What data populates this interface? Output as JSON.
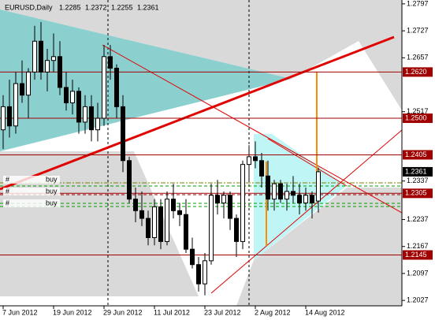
{
  "chart_data": {
    "type": "candlestick",
    "symbol": "EURUSD,Daily",
    "categories": [
      "7 Jun 2012",
      null,
      null,
      null,
      null,
      null,
      null,
      null,
      "19 Jun 2012",
      null,
      null,
      null,
      null,
      null,
      null,
      null,
      "29 Jun 2012",
      null,
      null,
      null,
      null,
      null,
      null,
      null,
      "11 Jul 2012",
      null,
      null,
      null,
      null,
      null,
      null,
      null,
      "23 Jul 2012",
      null,
      null,
      null,
      null,
      null,
      null,
      null,
      "2 Aug 2012",
      null,
      null,
      null,
      null,
      null,
      null,
      null,
      "14 Aug 2012",
      null,
      null
    ],
    "ohlc": {
      "open": [
        1.247,
        1.253,
        1.248,
        1.259,
        1.256,
        1.262,
        1.27,
        1.262,
        1.265,
        1.266,
        1.258,
        1.254,
        1.257,
        1.249,
        1.253,
        1.247,
        1.25,
        1.266,
        1.263,
        1.253,
        1.239,
        1.229,
        1.226,
        1.224,
        1.219,
        1.227,
        1.218,
        1.229,
        1.226,
        1.225,
        1.216,
        1.212,
        1.207,
        1.213,
        1.23,
        1.228,
        1.23,
        1.224,
        1.218,
        1.238,
        1.24,
        1.239,
        1.235,
        1.229,
        1.233,
        1.229,
        1.231,
        1.23,
        1.228,
        1.23,
        1.2285
      ],
      "high": [
        1.256,
        1.26,
        1.262,
        1.265,
        1.263,
        1.274,
        1.275,
        1.268,
        1.272,
        1.27,
        1.262,
        1.26,
        1.258,
        1.256,
        1.256,
        1.254,
        1.269,
        1.269,
        1.264,
        1.256,
        1.24,
        1.232,
        1.231,
        1.226,
        1.229,
        1.229,
        1.231,
        1.233,
        1.228,
        1.229,
        1.219,
        1.214,
        1.215,
        1.233,
        1.234,
        1.231,
        1.231,
        1.225,
        1.239,
        1.243,
        1.244,
        1.241,
        1.239,
        1.234,
        1.234,
        1.233,
        1.235,
        1.233,
        1.232,
        1.231,
        1.2372
      ],
      "low": [
        1.242,
        1.245,
        1.246,
        1.254,
        1.25,
        1.26,
        1.26,
        1.257,
        1.262,
        1.256,
        1.252,
        1.251,
        1.246,
        1.246,
        1.244,
        1.244,
        1.248,
        1.26,
        1.25,
        1.236,
        1.228,
        1.223,
        1.222,
        1.217,
        1.217,
        1.216,
        1.217,
        1.224,
        1.222,
        1.215,
        1.211,
        1.205,
        1.204,
        1.212,
        1.225,
        1.224,
        1.221,
        1.214,
        1.216,
        1.234,
        1.237,
        1.232,
        1.226,
        1.226,
        1.228,
        1.226,
        1.228,
        1.225,
        1.226,
        1.224,
        1.2255
      ],
      "close": [
        1.253,
        1.248,
        1.259,
        1.256,
        1.262,
        1.27,
        1.262,
        1.265,
        1.266,
        1.258,
        1.254,
        1.257,
        1.249,
        1.253,
        1.247,
        1.25,
        1.266,
        1.263,
        1.253,
        1.239,
        1.229,
        1.226,
        1.224,
        1.219,
        1.227,
        1.218,
        1.229,
        1.226,
        1.225,
        1.216,
        1.212,
        1.207,
        1.213,
        1.23,
        1.228,
        1.23,
        1.224,
        1.218,
        1.238,
        1.24,
        1.239,
        1.235,
        1.229,
        1.233,
        1.229,
        1.231,
        1.23,
        1.228,
        1.23,
        1.228,
        1.2361
      ]
    },
    "ylim": [
      1.2013,
      1.2807
    ],
    "yticks": [
      1.2797,
      1.2727,
      1.2657,
      1.2517,
      1.2337,
      1.2237,
      1.2167,
      1.2097,
      1.2027
    ],
    "levels": [
      {
        "value": 1.262,
        "label": "1.2620"
      },
      {
        "value": 1.25,
        "label": "1.2500"
      },
      1.2405,
      1.2305,
      1.2145
    ],
    "orders": [
      {
        "ticket": "#",
        "type": "buy"
      },
      {
        "ticket": "#",
        "type": "buy"
      },
      {
        "ticket": "#",
        "type": "buy"
      }
    ],
    "level_color": "#a00000",
    "up_color": "#ffffff",
    "down_color": "#000000"
  }
}
